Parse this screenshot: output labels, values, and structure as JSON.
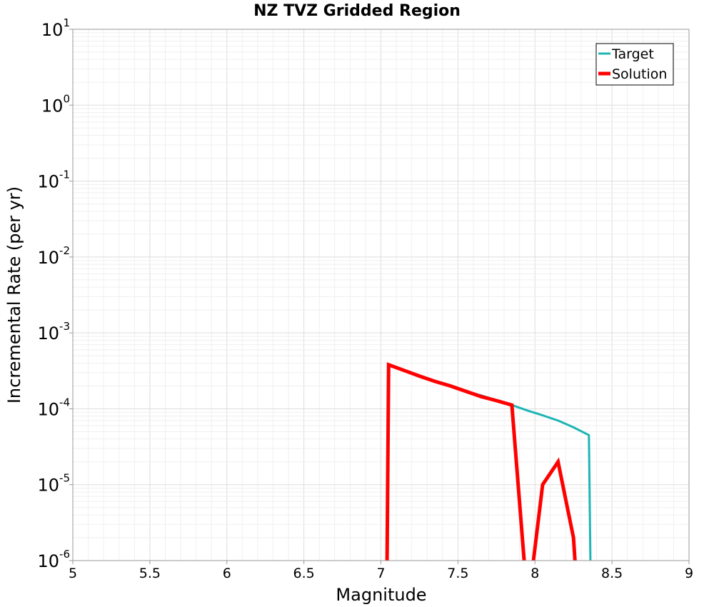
{
  "chart_data": {
    "type": "line",
    "title": "NZ TVZ Gridded Region",
    "xlabel": "Magnitude",
    "ylabel": "Incremental Rate (per yr)",
    "xlim": [
      5,
      9
    ],
    "ylim": [
      1e-06,
      10
    ],
    "yscale": "log",
    "grid": true,
    "legend_position": "top-right",
    "xticks": [
      "5",
      "5.5",
      "6",
      "6.5",
      "7",
      "7.5",
      "8",
      "8.5",
      "9"
    ],
    "yticks": [
      {
        "base": "10",
        "exp": "-6"
      },
      {
        "base": "10",
        "exp": "-5"
      },
      {
        "base": "10",
        "exp": "-4"
      },
      {
        "base": "10",
        "exp": "-3"
      },
      {
        "base": "10",
        "exp": "-2"
      },
      {
        "base": "10",
        "exp": "-1"
      },
      {
        "base": "10",
        "exp": "0"
      },
      {
        "base": "10",
        "exp": "1"
      }
    ],
    "series": [
      {
        "name": "Target",
        "color": "#1fb5b5",
        "x": [
          7.05,
          7.15,
          7.25,
          7.35,
          7.45,
          7.55,
          7.65,
          7.75,
          7.85,
          7.95,
          8.05,
          8.15,
          8.25,
          8.35,
          8.36
        ],
        "y": [
          0.00038,
          0.00032,
          0.00027,
          0.00023,
          0.0002,
          0.00017,
          0.00015,
          0.00013,
          0.000112,
          9.5e-05,
          8.2e-05,
          7e-05,
          5.7e-05,
          4.5e-05,
          8e-07
        ]
      },
      {
        "name": "Solution",
        "color": "#ff0000",
        "segments": [
          {
            "x": [
              7.04,
              7.05,
              7.15,
              7.25,
              7.35,
              7.45,
              7.55,
              7.65,
              7.75,
              7.85,
              7.93
            ],
            "y": [
              8e-07,
              0.00038,
              0.00032,
              0.00027,
              0.00023,
              0.0002,
              0.00017,
              0.000145,
              0.000128,
              0.000112,
              8e-07
            ]
          },
          {
            "x": [
              7.99,
              8.05,
              8.15,
              8.25,
              8.26
            ],
            "y": [
              8e-07,
              1e-05,
              2e-05,
              2e-06,
              8e-07
            ]
          }
        ]
      }
    ]
  }
}
